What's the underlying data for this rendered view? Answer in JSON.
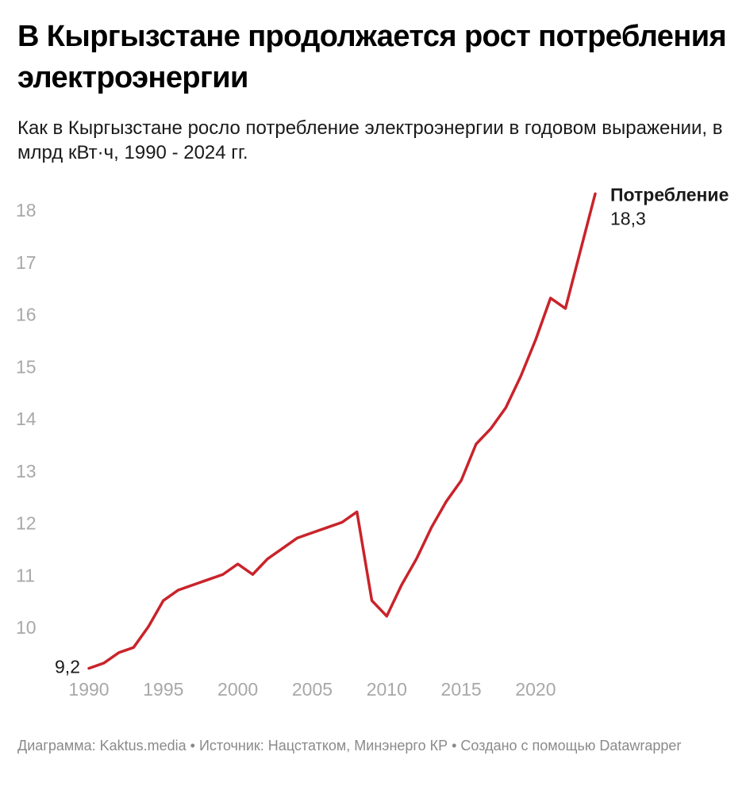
{
  "header": {
    "title": "В Кыргызстане продолжается рост потребления электроэнергии",
    "subtitle": "Как в Кыргызстане росло потребление электроэнергии в годовом выражении, в млрд кВт·ч, 1990 - 2024 гг."
  },
  "footer": {
    "text": "Диаграмма: Kaktus.media • Источник: Нацстатком, Минэнерго КР • Создано с помощью Datawrapper"
  },
  "colors": {
    "line": "#c9232a",
    "axis_text": "#a8a8a8",
    "text": "#1a1a1a"
  },
  "chart_data": {
    "type": "line",
    "title": "В Кыргызстане продолжается рост потребления электроэнергии",
    "subtitle": "Как в Кыргызстане росло потребление электроэнергии в годовом выражении, в млрд кВт·ч, 1990 - 2024 гг.",
    "xlabel": "",
    "ylabel": "",
    "x_ticks": [
      1990,
      1995,
      2000,
      2005,
      2010,
      2015,
      2020
    ],
    "y_ticks": [
      10,
      11,
      12,
      13,
      14,
      15,
      16,
      17,
      18
    ],
    "xlim": [
      1990,
      2024
    ],
    "ylim": [
      9.2,
      18.3
    ],
    "grid": false,
    "series": [
      {
        "name": "Потребление",
        "x": [
          1990,
          1991,
          1992,
          1993,
          1994,
          1995,
          1996,
          1997,
          1998,
          1999,
          2000,
          2001,
          2002,
          2003,
          2004,
          2005,
          2006,
          2007,
          2008,
          2009,
          2010,
          2011,
          2012,
          2013,
          2014,
          2015,
          2016,
          2017,
          2018,
          2019,
          2020,
          2021,
          2022,
          2023,
          2024
        ],
        "values": [
          9.2,
          9.3,
          9.5,
          9.6,
          10.0,
          10.5,
          10.7,
          10.8,
          10.9,
          11.0,
          11.2,
          11.0,
          11.3,
          11.5,
          11.7,
          11.8,
          11.9,
          12.0,
          12.2,
          10.5,
          10.2,
          10.8,
          11.3,
          11.9,
          12.4,
          12.8,
          13.5,
          13.8,
          14.2,
          14.8,
          15.5,
          16.3,
          16.1,
          17.2,
          18.3
        ]
      }
    ],
    "annotations": {
      "start_label": "9,2",
      "end_name": "Потребление",
      "end_value": "18,3"
    }
  }
}
